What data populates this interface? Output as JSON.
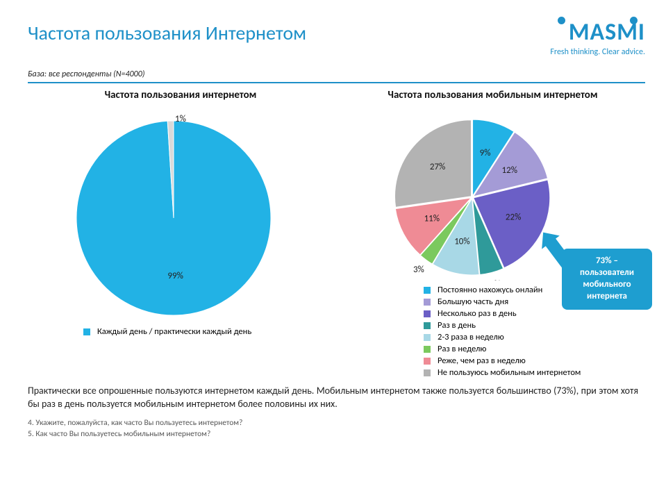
{
  "page": {
    "title": "Частота пользования Интернетом",
    "base_note": "База: все респонденты (N=4000)",
    "body_text": "Практически все опрошенные пользуются интернетом каждый день. Мобильным интернетом также пользуется большинство (73%), при этом хотя бы раз в день пользуется мобильным интернетом более половины их них.",
    "footnote_1": "4. Укажите, пожалуйста, как часто Вы пользуетесь интернетом?",
    "footnote_2": "5. Как часто Вы пользуетесь мобильным интернетом?"
  },
  "logo": {
    "text": "MASMI",
    "tagline": "Fresh thinking. Clear advice.",
    "color": "#1e90c8"
  },
  "chart_left": {
    "type": "pie",
    "title": "Частота пользования интернетом",
    "slices": [
      {
        "label": "Каждый день / практически каждый день",
        "value": 99,
        "color": "#22b2e5",
        "display": "99%"
      },
      {
        "label": "",
        "value": 1,
        "color": "#d9d9d9",
        "display": "1%"
      }
    ],
    "radius": 140,
    "background_color": "#ffffff",
    "label_fontsize": 13,
    "legend_items": [
      {
        "color": "#22b2e5",
        "text": "Каждый день / практически каждый день"
      }
    ]
  },
  "chart_right": {
    "type": "pie",
    "title": "Частота пользования мобильным интернетом",
    "slices": [
      {
        "label": "Постоянно нахожусь онлайн",
        "value": 9,
        "color": "#22b2e5",
        "display": "9%"
      },
      {
        "label": "Большую часть дня",
        "value": 12,
        "color": "#a49bd6",
        "display": "12%"
      },
      {
        "label": "Несколько раз в день",
        "value": 22,
        "color": "#6b5fc6",
        "display": "22%"
      },
      {
        "label": "Раз в день",
        "value": 5,
        "color": "#2f9a9a",
        "display": "5%"
      },
      {
        "label": "2-3 раза в неделю",
        "value": 10,
        "color": "#a8d8e6",
        "display": "10%"
      },
      {
        "label": "Раз в неделю",
        "value": 3,
        "color": "#7bc95e",
        "display": "3%"
      },
      {
        "label": "Реже, чем раз в неделю",
        "value": 11,
        "color": "#ef8b95",
        "display": "11%"
      },
      {
        "label": "Не пользуюсь мобильным интернетом",
        "value": 27,
        "color": "#b3b3b3",
        "display": "27%"
      }
    ],
    "radius": 110,
    "background_color": "#ffffff",
    "label_fontsize": 13,
    "callout": {
      "text": "73% – пользователи мобильного интернета",
      "bg_color": "#1e9ed0",
      "text_color": "#ffffff"
    },
    "legend_items": [
      {
        "color": "#22b2e5",
        "text": "Постоянно нахожусь онлайн"
      },
      {
        "color": "#a49bd6",
        "text": "Большую часть дня"
      },
      {
        "color": "#6b5fc6",
        "text": "Несколько раз в день"
      },
      {
        "color": "#2f9a9a",
        "text": "Раз в день"
      },
      {
        "color": "#a8d8e6",
        "text": "2-3 раза в неделю"
      },
      {
        "color": "#7bc95e",
        "text": "Раз в неделю"
      },
      {
        "color": "#ef8b95",
        "text": "Реже, чем раз в неделю"
      },
      {
        "color": "#b3b3b3",
        "text": "Не пользуюсь мобильным интернетом"
      }
    ]
  }
}
